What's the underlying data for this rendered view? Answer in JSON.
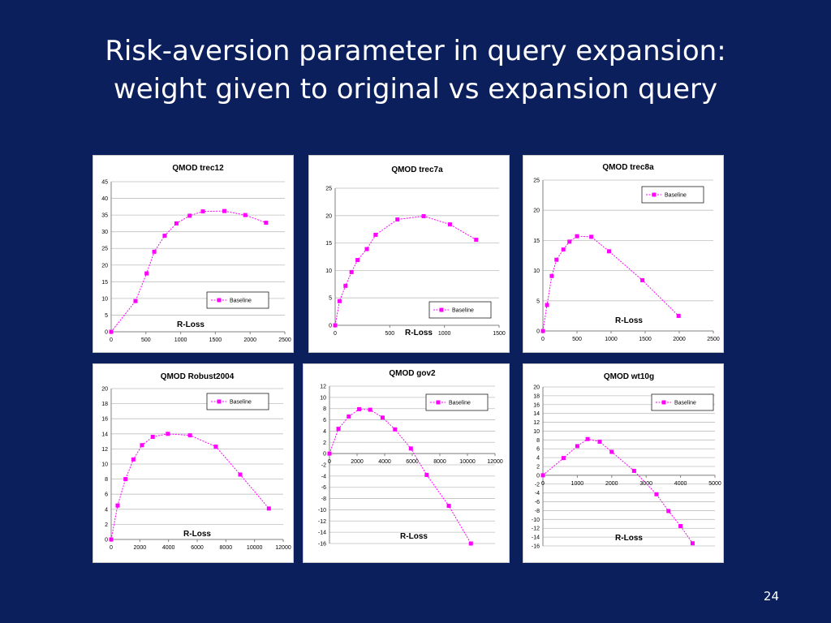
{
  "slide": {
    "title_line1": "Risk-aversion parameter in query expansion:",
    "title_line2": "weight given to original vs expansion query",
    "page_number": "24"
  },
  "style": {
    "background": "#0b1f5c",
    "series_color": "#ff00ff",
    "plot_bg": "#ffffff",
    "grid": "#bfbfbf"
  },
  "chart_data": [
    {
      "type": "line",
      "title": "QMOD trec12",
      "xlabel": "R-Loss",
      "ylabel": "",
      "xlim": [
        0,
        2500
      ],
      "ylim": [
        0,
        45
      ],
      "xticks": [
        0,
        500,
        1000,
        1500,
        2000,
        2500
      ],
      "yticks": [
        0,
        5,
        10,
        15,
        20,
        25,
        30,
        35,
        40,
        45
      ],
      "legend": "bottom-right",
      "series": [
        {
          "name": "Baseline",
          "x": [
            0,
            350,
            510,
            620,
            770,
            940,
            1130,
            1320,
            1630,
            1930,
            2230
          ],
          "y": [
            0,
            9.2,
            17.5,
            24,
            28.8,
            32.5,
            34.8,
            36.1,
            36.2,
            35,
            32.7
          ]
        }
      ]
    },
    {
      "type": "line",
      "title": "QMOD trec7a",
      "xlabel": "R-Loss",
      "ylabel": "",
      "xlim": [
        0,
        1500
      ],
      "ylim": [
        0,
        25
      ],
      "xticks": [
        0,
        500,
        1000,
        1500
      ],
      "yticks": [
        0,
        5,
        10,
        15,
        20,
        25
      ],
      "legend": "bottom-right",
      "series": [
        {
          "name": "Baseline",
          "x": [
            0,
            40,
            95,
            150,
            205,
            290,
            370,
            570,
            810,
            1050,
            1290
          ],
          "y": [
            0,
            4.4,
            7.2,
            9.7,
            11.9,
            13.9,
            16.5,
            19.3,
            19.9,
            18.4,
            15.6
          ]
        }
      ]
    },
    {
      "type": "line",
      "title": "QMOD trec8a",
      "xlabel": "R-Loss",
      "ylabel": "",
      "xlim": [
        0,
        2500
      ],
      "ylim": [
        0,
        25
      ],
      "xticks": [
        0,
        500,
        1000,
        1500,
        2000,
        2500
      ],
      "yticks": [
        0,
        5,
        10,
        15,
        20,
        25
      ],
      "legend": "top-right",
      "series": [
        {
          "name": "Baseline",
          "x": [
            0,
            60,
            130,
            200,
            300,
            390,
            500,
            710,
            970,
            1460,
            1990
          ],
          "y": [
            0,
            4.3,
            9.1,
            11.8,
            13.5,
            14.8,
            15.7,
            15.6,
            13.2,
            8.4,
            2.5
          ]
        }
      ]
    },
    {
      "type": "line",
      "title": "QMOD Robust2004",
      "xlabel": "R-Loss",
      "ylabel": "",
      "xlim": [
        0,
        12000
      ],
      "ylim": [
        0,
        20
      ],
      "xticks": [
        0,
        2000,
        4000,
        6000,
        8000,
        10000,
        12000
      ],
      "yticks": [
        0,
        2,
        4,
        6,
        8,
        10,
        12,
        14,
        16,
        18,
        20
      ],
      "legend": "top-right",
      "series": [
        {
          "name": "Baseline",
          "x": [
            0,
            450,
            1000,
            1550,
            2150,
            2900,
            3950,
            5500,
            7300,
            9000,
            11000
          ],
          "y": [
            0,
            4.5,
            8,
            10.6,
            12.5,
            13.6,
            14,
            13.8,
            12.3,
            8.6,
            4.1
          ]
        }
      ]
    },
    {
      "type": "line",
      "title": "QMOD gov2",
      "xlabel": "R-Loss",
      "ylabel": "",
      "xlim": [
        0,
        12000
      ],
      "ylim": [
        -16,
        12
      ],
      "xticks": [
        0,
        2000,
        4000,
        6000,
        8000,
        10000,
        12000
      ],
      "yticks": [
        -16,
        -14,
        -12,
        -10,
        -8,
        -6,
        -4,
        -2,
        0,
        2,
        4,
        6,
        8,
        10,
        12
      ],
      "legend": "top-right",
      "series": [
        {
          "name": "Baseline",
          "x": [
            0,
            650,
            1400,
            2150,
            2950,
            3850,
            4750,
            5900,
            7050,
            8650,
            10250
          ],
          "y": [
            0,
            4.4,
            6.6,
            7.9,
            7.8,
            6.4,
            4.3,
            0.9,
            -3.8,
            -9.3,
            -16
          ]
        }
      ]
    },
    {
      "type": "line",
      "title": "QMOD wt10g",
      "xlabel": "R-Loss",
      "ylabel": "",
      "xlim": [
        0,
        5000
      ],
      "ylim": [
        -16,
        20
      ],
      "xticks": [
        0,
        1000,
        2000,
        3000,
        4000,
        5000
      ],
      "yticks": [
        -16,
        -14,
        -12,
        -10,
        -8,
        -6,
        -4,
        -2,
        0,
        2,
        4,
        6,
        8,
        10,
        12,
        14,
        16,
        18,
        20
      ],
      "legend": "top-right",
      "series": [
        {
          "name": "Baseline",
          "x": [
            0,
            600,
            1000,
            1300,
            1650,
            2000,
            2650,
            3300,
            3650,
            4000,
            4350
          ],
          "y": [
            0,
            3.9,
            6.6,
            8.2,
            7.6,
            5.3,
            1,
            -4.3,
            -8.1,
            -11.5,
            -15.4
          ]
        }
      ]
    }
  ]
}
